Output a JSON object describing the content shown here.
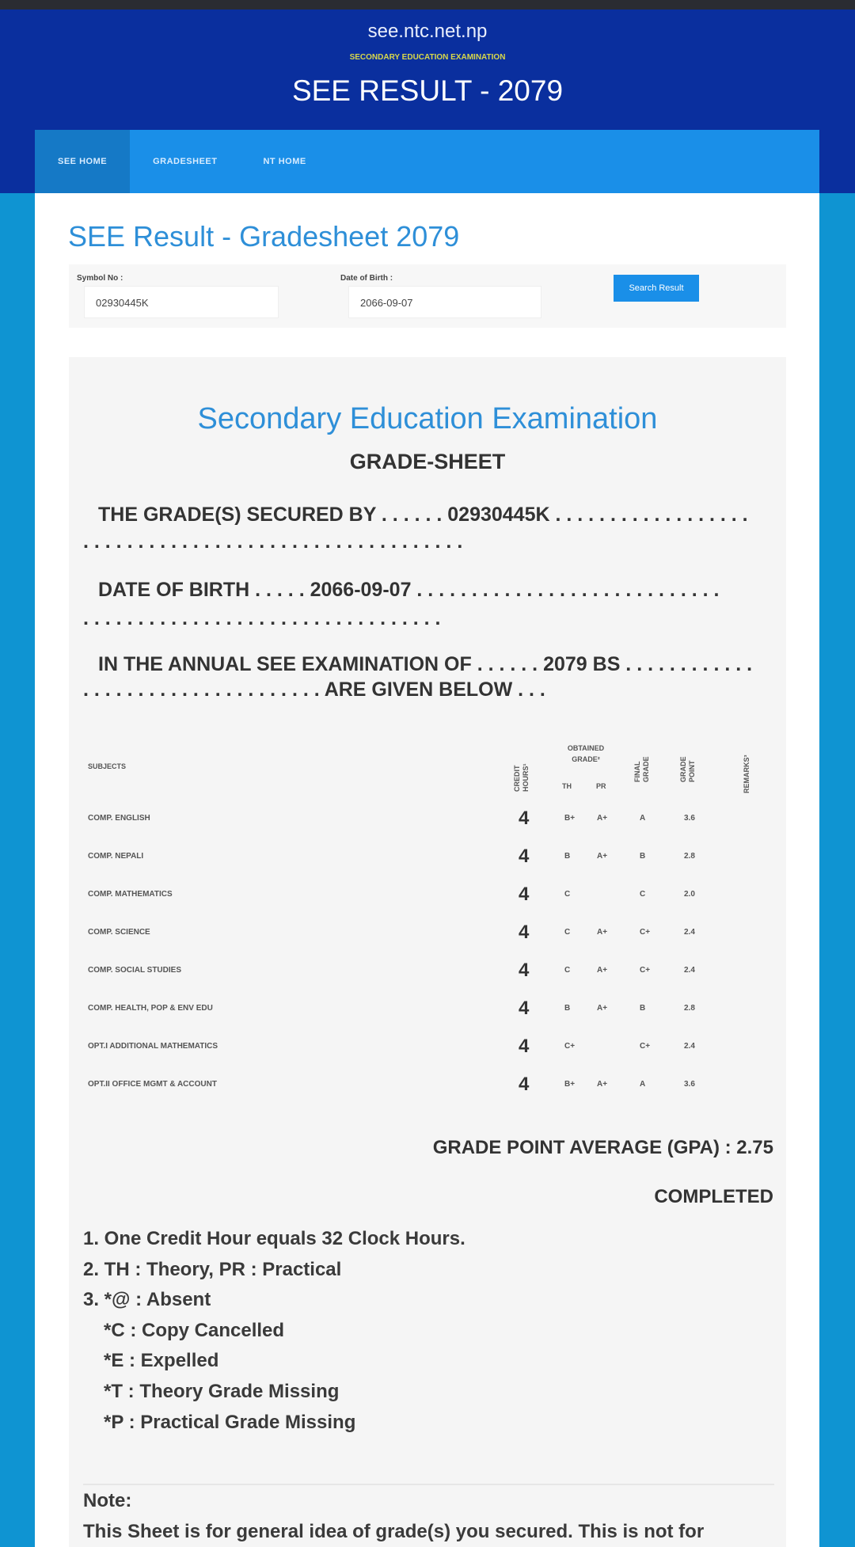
{
  "header": {
    "site": "see.ntc.net.np",
    "subtitle": "SECONDARY EDUCATION EXAMINATION",
    "title": "SEE RESULT - 2079"
  },
  "nav": [
    {
      "label": "SEE HOME",
      "active": true
    },
    {
      "label": "GRADESHEET"
    },
    {
      "label": "NT HOME"
    }
  ],
  "page_title": "SEE Result - Gradesheet 2079",
  "form": {
    "symbol_label": "Symbol No :",
    "symbol_value": "02930445K",
    "dob_label": "Date of Birth :",
    "dob_value": "2066-09-07",
    "search_button": "Search Result"
  },
  "sheet": {
    "title": "Secondary Education Examination",
    "subtitle": "GRADE-SHEET",
    "line1a": "THE GRADE(S) SECURED BY . . . . . . 02930445K . . . . . . . . . . . . . . . . . .",
    "line1b": ". . . . . . . . . . . . . . . . . . . . . . . . . . . . . . . . . . .",
    "line2a": "DATE OF BIRTH . . . . . 2066-09-07 . . . . . . . . . . . . . . . . . . . . . . . . . . . .",
    "line2b": ". . . . . . . . . . . . . . . . . . . . . . . . . . . . . . . . .",
    "line3a": "IN THE ANNUAL SEE EXAMINATION OF . . . . . . 2079 BS . . . . . . . . . . . .",
    "line3b": ". . . . . . . . . . . . . . . . . . . . . . ARE GIVEN BELOW . . .",
    "headers": {
      "subjects": "SUBJECTS",
      "credit_hours": "CREDIT HOURS¹",
      "obtained_grade": "OBTAINED GRADE²",
      "th": "TH",
      "pr": "PR",
      "final_grade": "FINAL GRADE",
      "grade_point": "GRADE POINT",
      "remarks": "REMARKS³"
    },
    "rows": [
      {
        "subject": "COMP. ENGLISH",
        "credit": "4",
        "th": "B+",
        "pr": "A+",
        "final": "A",
        "gp": "3.6",
        "remarks": ""
      },
      {
        "subject": "COMP. NEPALI",
        "credit": "4",
        "th": "B",
        "pr": "A+",
        "final": "B",
        "gp": "2.8",
        "remarks": ""
      },
      {
        "subject": "COMP. MATHEMATICS",
        "credit": "4",
        "th": "C",
        "pr": "",
        "final": "C",
        "gp": "2.0",
        "remarks": ""
      },
      {
        "subject": "COMP. SCIENCE",
        "credit": "4",
        "th": "C",
        "pr": "A+",
        "final": "C+",
        "gp": "2.4",
        "remarks": ""
      },
      {
        "subject": "COMP. SOCIAL STUDIES",
        "credit": "4",
        "th": "C",
        "pr": "A+",
        "final": "C+",
        "gp": "2.4",
        "remarks": ""
      },
      {
        "subject": "COMP. HEALTH, POP & ENV EDU",
        "credit": "4",
        "th": "B",
        "pr": "A+",
        "final": "B",
        "gp": "2.8",
        "remarks": ""
      },
      {
        "subject": "OPT.I ADDITIONAL MATHEMATICS",
        "credit": "4",
        "th": "C+",
        "pr": "",
        "final": "C+",
        "gp": "2.4",
        "remarks": ""
      },
      {
        "subject": "OPT.II OFFICE MGMT & ACCOUNT",
        "credit": "4",
        "th": "B+",
        "pr": "A+",
        "final": "A",
        "gp": "3.6",
        "remarks": ""
      }
    ],
    "gpa": "GRADE POINT AVERAGE (GPA) : 2.75",
    "status": "COMPLETED",
    "notes": [
      "1. One Credit Hour equals 32 Clock Hours.",
      "2. TH : Theory, PR : Practical",
      "3. *@ : Absent",
      "*C : Copy Cancelled",
      "*E : Expelled",
      "*T : Theory Grade Missing",
      "*P : Practical Grade Missing"
    ],
    "note_heading": "Note:",
    "note_text": "This Sheet is for general idea of grade(s) you secured. This is not for"
  }
}
